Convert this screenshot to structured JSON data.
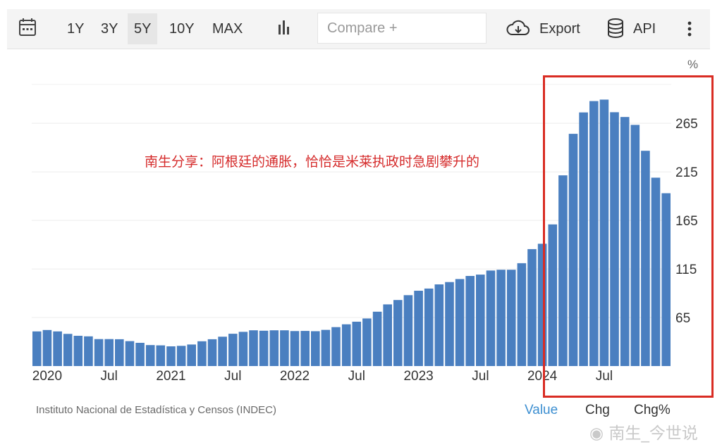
{
  "toolbar": {
    "ranges": [
      "1Y",
      "3Y",
      "5Y",
      "10Y",
      "MAX"
    ],
    "active_range": "5Y",
    "compare_placeholder": "Compare +",
    "export_label": "Export",
    "api_label": "API",
    "icons": [
      "calendar-icon",
      "chart-type-icon",
      "cloud-download-icon",
      "database-icon",
      "more-vertical-icon"
    ]
  },
  "annotation": "南生分享：阿根廷的通胀，恰恰是米莱执政时急剧攀升的",
  "footer": {
    "source": "Instituto Nacional de Estadística y Censos (INDEC)",
    "value_label": "Value",
    "chg_label": "Chg",
    "chgpct_label": "Chg%"
  },
  "watermark": "南生_今世说",
  "colors": {
    "bar": "#4a7fc0",
    "accent": "#3d8fd1",
    "highlight": "#d92c23"
  },
  "chart_data": {
    "type": "bar",
    "unit_label": "%",
    "ylim": [
      15,
      305
    ],
    "y_ticks": [
      65,
      115,
      165,
      215,
      265
    ],
    "x_tick_labels": [
      "2020",
      "Jul",
      "2021",
      "Jul",
      "2022",
      "Jul",
      "2023",
      "Jul",
      "2024",
      "Jul"
    ],
    "x_tick_indices": [
      1,
      7,
      13,
      19,
      25,
      31,
      37,
      43,
      49,
      55
    ],
    "grid": true,
    "values": [
      50.7,
      52.1,
      50.7,
      48.1,
      46.2,
      45.6,
      42.8,
      42.8,
      42.6,
      40.7,
      38.9,
      36.6,
      36.3,
      35.3,
      35.8,
      37.2,
      40.5,
      42.6,
      45.2,
      48.3,
      50.2,
      51.8,
      51.4,
      51.8,
      51.8,
      51.0,
      51.2,
      50.9,
      52.3,
      55.1,
      58.0,
      60.7,
      64.0,
      71.0,
      78.5,
      83.0,
      88.0,
      92.6,
      94.8,
      99.1,
      101.5,
      104.6,
      107.8,
      109.2,
      113.4,
      114.2,
      114.2,
      120.9,
      135.4,
      140.9,
      160.9,
      211.4,
      254.2,
      276.2,
      287.9,
      289.4,
      276.4,
      271.5,
      263.4,
      236.7,
      209.0,
      193.0
    ]
  }
}
